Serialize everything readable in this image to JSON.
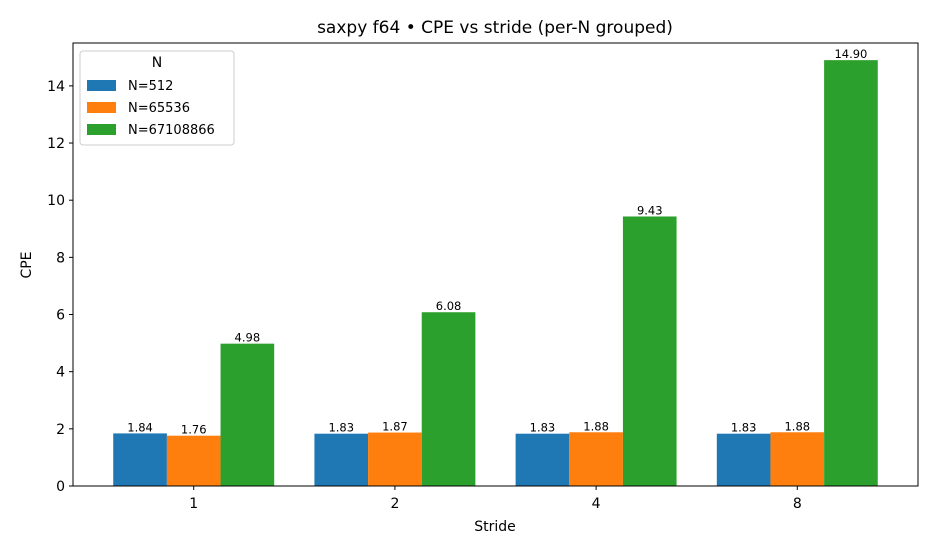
{
  "chart_data": {
    "type": "bar",
    "title": "saxpy f64 • CPE vs stride (per-N grouped)",
    "xlabel": "Stride",
    "ylabel": "CPE",
    "categories": [
      "1",
      "2",
      "4",
      "8"
    ],
    "ylim": [
      0,
      15.5
    ],
    "yticks": [
      0,
      2,
      4,
      6,
      8,
      10,
      12,
      14
    ],
    "legend_title": "N",
    "legend_position": "top-left",
    "grid": false,
    "series": [
      {
        "name": "N=512",
        "color": "#1f77b4",
        "values": [
          1.84,
          1.83,
          1.83,
          1.83
        ],
        "labels": [
          "1.84",
          "1.83",
          "1.83",
          "1.83"
        ]
      },
      {
        "name": "N=65536",
        "color": "#ff7f0e",
        "values": [
          1.76,
          1.87,
          1.88,
          1.88
        ],
        "labels": [
          "1.76",
          "1.87",
          "1.88",
          "1.88"
        ]
      },
      {
        "name": "N=67108866",
        "color": "#2ca02c",
        "values": [
          4.98,
          6.08,
          9.43,
          14.9
        ],
        "labels": [
          "4.98",
          "6.08",
          "9.43",
          "14.90"
        ]
      }
    ]
  }
}
